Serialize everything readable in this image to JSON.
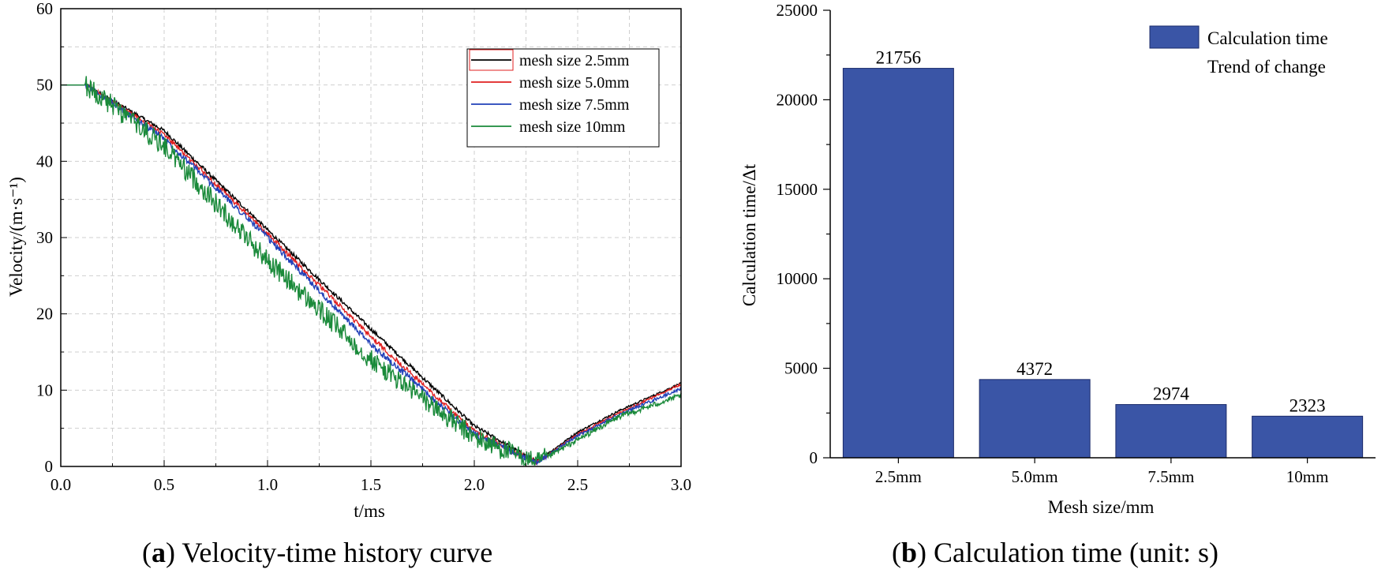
{
  "chart_data": [
    {
      "type": "line",
      "xlabel": "t/ms",
      "ylabel": "Velocity/(m·s⁻¹)",
      "xlim": [
        0.0,
        3.0
      ],
      "ylim": [
        0,
        60
      ],
      "xticks": [
        "0.0",
        "0.5",
        "1.0",
        "1.5",
        "2.0",
        "2.5",
        "3.0"
      ],
      "yticks": [
        "0",
        "10",
        "20",
        "30",
        "40",
        "50",
        "60"
      ],
      "grid": true,
      "legend_position": "top-right",
      "series": [
        {
          "name": "mesh size 2.5mm",
          "color": "#000000",
          "noise": 0.25,
          "points": [
            [
              0.0,
              50
            ],
            [
              0.12,
              50
            ],
            [
              0.5,
              44
            ],
            [
              1.0,
              31
            ],
            [
              1.5,
              18
            ],
            [
              2.0,
              5.3
            ],
            [
              2.3,
              0.6
            ],
            [
              2.5,
              4.5
            ],
            [
              2.7,
              7.3
            ],
            [
              3.0,
              10.9
            ]
          ]
        },
        {
          "name": "mesh size 5.0mm",
          "color": "#e02020",
          "noise": 0.3,
          "points": [
            [
              0.0,
              50
            ],
            [
              0.12,
              50
            ],
            [
              0.5,
              43.5
            ],
            [
              1.0,
              30.5
            ],
            [
              1.5,
              17
            ],
            [
              2.0,
              4.6
            ],
            [
              2.3,
              0.5
            ],
            [
              2.5,
              4.2
            ],
            [
              2.7,
              7.0
            ],
            [
              3.0,
              10.8
            ]
          ]
        },
        {
          "name": "mesh size 7.5mm",
          "color": "#2040b8",
          "noise": 0.4,
          "points": [
            [
              0.0,
              50
            ],
            [
              0.12,
              50
            ],
            [
              0.5,
              43
            ],
            [
              1.0,
              30
            ],
            [
              1.5,
              16
            ],
            [
              2.0,
              4.2
            ],
            [
              2.3,
              0.5
            ],
            [
              2.5,
              4.0
            ],
            [
              2.7,
              6.8
            ],
            [
              3.0,
              10.2
            ]
          ]
        },
        {
          "name": "mesh size 10mm",
          "color": "#1a8a3a",
          "noise": 1.4,
          "points": [
            [
              0.0,
              50
            ],
            [
              0.12,
              50
            ],
            [
              0.5,
              42
            ],
            [
              1.0,
              27
            ],
            [
              1.5,
              14
            ],
            [
              2.0,
              3.8
            ],
            [
              2.3,
              0.4
            ],
            [
              2.5,
              3.5
            ],
            [
              2.7,
              6.5
            ],
            [
              3.0,
              9.3
            ]
          ]
        }
      ],
      "caption_bold": "a",
      "caption_text": " Velocity-time history curve",
      "caption_open": "(",
      "caption_close": ")"
    },
    {
      "type": "bar",
      "xlabel": "Mesh size/mm",
      "ylabel": "Calculation time/Δt",
      "ylim": [
        0,
        25000
      ],
      "yticks": [
        "0",
        "5000",
        "10000",
        "15000",
        "20000",
        "25000"
      ],
      "categories": [
        "2.5mm",
        "5.0mm",
        "7.5mm",
        "10mm"
      ],
      "values": [
        21756,
        4372,
        2974,
        2323
      ],
      "bar_color": "#3a55a6",
      "legend": [
        "Calculation time",
        "Trend of change"
      ],
      "legend_position": "top-right",
      "caption_bold": "b",
      "caption_text": " Calculation time (unit: s)",
      "caption_open": "(",
      "caption_close": ")"
    }
  ]
}
